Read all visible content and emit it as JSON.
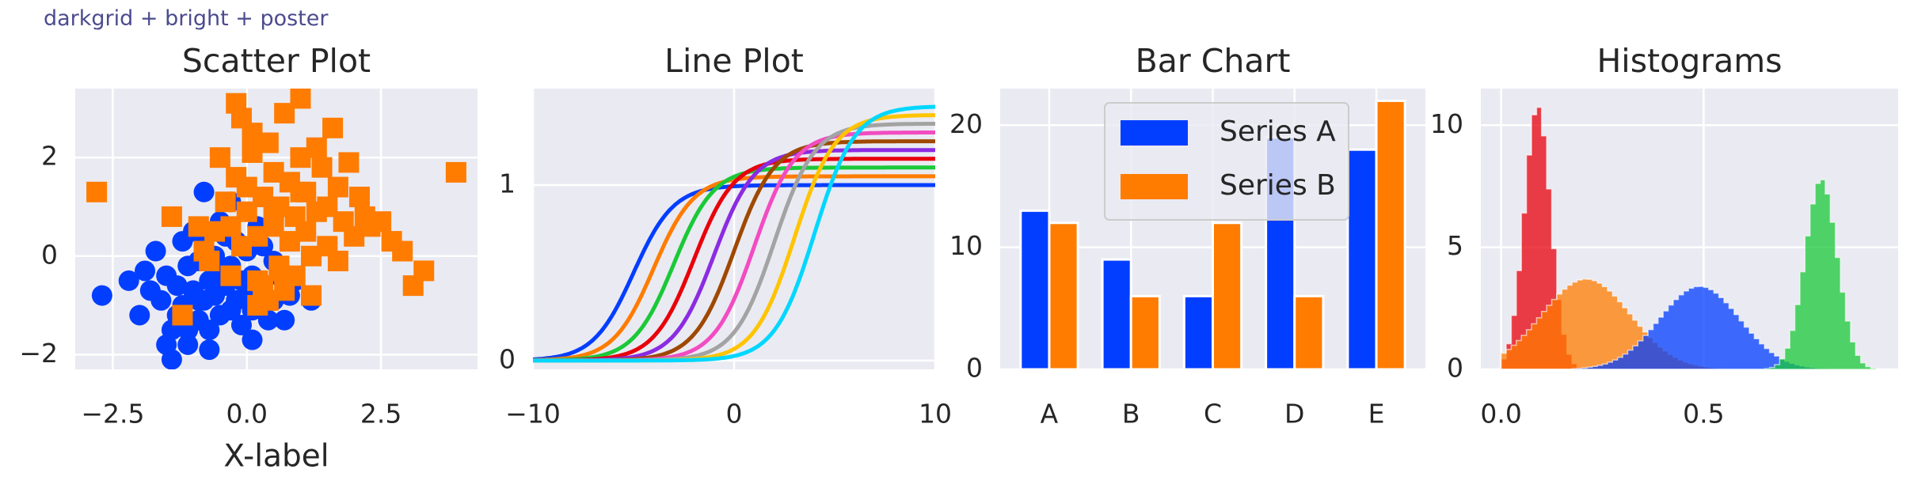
{
  "figure_title": "darkgrid + bright + poster",
  "style": {
    "axes_bg": "#eaeaf2",
    "grid": "#ffffff",
    "text": "#262626"
  },
  "chart_data": [
    {
      "type": "scatter",
      "title": "Scatter Plot",
      "xlabel": "X-label",
      "ylabel": "",
      "xlim": [
        -3.2,
        4.3
      ],
      "ylim": [
        -2.3,
        3.4
      ],
      "xticks": [
        -2.5,
        0.0,
        2.5
      ],
      "xtick_labels": [
        "−2.5",
        "0.0",
        "2.5"
      ],
      "yticks": [
        -2,
        0,
        2
      ],
      "ytick_labels": [
        "−2",
        "0",
        "2"
      ],
      "grid": true,
      "series": [
        {
          "color": "#023eff",
          "marker": "circle",
          "x": [
            -2.7,
            -2.2,
            -2.0,
            -1.9,
            -1.8,
            -1.7,
            -1.6,
            -1.5,
            -1.4,
            -1.4,
            -1.3,
            -1.2,
            -1.2,
            -1.1,
            -1.1,
            -1.0,
            -1.0,
            -0.9,
            -0.9,
            -0.8,
            -0.8,
            -0.8,
            -0.7,
            -0.7,
            -0.6,
            -0.6,
            -0.5,
            -0.5,
            -0.4,
            -0.4,
            -0.3,
            -0.3,
            -0.2,
            -0.2,
            -0.1,
            -0.1,
            0.0,
            0.0,
            0.1,
            0.1,
            0.2,
            0.2,
            0.3,
            0.3,
            0.4,
            0.5,
            0.6,
            0.7,
            0.8,
            0.9,
            1.2,
            -1.5,
            -1.1,
            -0.7,
            -0.5,
            -0.3,
            0.1,
            -0.9,
            -1.3,
            0.5
          ],
          "y": [
            -0.8,
            -0.5,
            -1.2,
            -0.3,
            -0.7,
            0.1,
            -0.9,
            -0.4,
            -1.5,
            -2.1,
            -0.6,
            -1.0,
            0.3,
            -1.8,
            -0.2,
            -0.7,
            0.5,
            -1.3,
            -0.1,
            -0.9,
            0.2,
            1.3,
            -0.5,
            -1.5,
            -0.8,
            0.0,
            -1.2,
            -0.3,
            -0.6,
            0.4,
            -1.1,
            -0.2,
            -0.9,
            0.3,
            -1.4,
            -0.5,
            -0.8,
            0.1,
            -1.7,
            -0.4,
            -1.0,
            0.6,
            -0.7,
            0.2,
            -1.3,
            -0.9,
            -0.4,
            -1.3,
            -0.8,
            -0.5,
            -0.9,
            -1.8,
            -1.5,
            -1.9,
            0.7,
            1.1,
            -1.1,
            -0.9,
            -1.2,
            -0.1
          ]
        },
        {
          "color": "#ff7c00",
          "marker": "square",
          "x": [
            -2.8,
            -1.4,
            -1.2,
            -0.8,
            -0.5,
            -0.3,
            -0.2,
            -0.1,
            0.0,
            0.0,
            0.1,
            0.2,
            0.2,
            0.3,
            0.4,
            0.4,
            0.5,
            0.5,
            0.6,
            0.6,
            0.7,
            0.8,
            0.8,
            0.9,
            0.9,
            1.0,
            1.0,
            1.1,
            1.1,
            1.2,
            1.3,
            1.3,
            1.4,
            1.5,
            1.5,
            1.6,
            1.7,
            1.7,
            1.8,
            1.9,
            2.0,
            2.1,
            2.2,
            2.3,
            2.5,
            2.7,
            2.9,
            3.1,
            3.3,
            3.9,
            -0.3,
            -0.1,
            0.2,
            0.5,
            0.7,
            1.0,
            -0.6,
            -0.4,
            -0.2,
            0.6,
            1.2,
            -0.7,
            -0.9,
            0.3,
            0.1
          ],
          "y": [
            1.3,
            0.8,
            -1.2,
            0.1,
            2.0,
            0.6,
            3.1,
            2.8,
            0.9,
            1.4,
            2.1,
            -0.5,
            0.4,
            1.2,
            2.3,
            -0.9,
            0.6,
            1.7,
            -0.2,
            1.0,
            2.9,
            0.3,
            1.5,
            -0.4,
            0.8,
            2.0,
            3.2,
            0.5,
            1.3,
            -0.8,
            2.2,
            0.9,
            1.8,
            0.2,
            1.0,
            2.6,
            -0.1,
            1.4,
            0.7,
            1.9,
            0.4,
            1.2,
            0.8,
            0.6,
            0.7,
            0.3,
            0.1,
            -0.6,
            -0.3,
            1.7,
            -0.4,
            0.2,
            -1.0,
            0.9,
            -0.7,
            1.3,
            0.5,
            1.1,
            1.6,
            -0.3,
            0.0,
            -0.1,
            0.6,
            -0.6,
            2.5
          ]
        }
      ]
    },
    {
      "type": "line",
      "title": "Line Plot",
      "xlim": [
        -10,
        10
      ],
      "ylim": [
        -0.05,
        1.55
      ],
      "xticks": [
        -10,
        0,
        10
      ],
      "xtick_labels": [
        "−10",
        "0",
        "10"
      ],
      "yticks": [
        0,
        1
      ],
      "ytick_labels": [
        "0",
        "1"
      ],
      "grid": true,
      "curve": "sigmoid: y = (1 + i/20) / (1 + exp(x0 - x))",
      "series": [
        {
          "color": "#023eff",
          "amplitude": 1.0,
          "x0": -5
        },
        {
          "color": "#ff7c00",
          "amplitude": 1.05,
          "x0": -4
        },
        {
          "color": "#1ac938",
          "amplitude": 1.1,
          "x0": -3
        },
        {
          "color": "#e8000b",
          "amplitude": 1.15,
          "x0": -2
        },
        {
          "color": "#8b2be2",
          "amplitude": 1.2,
          "x0": -1
        },
        {
          "color": "#9f4800",
          "amplitude": 1.25,
          "x0": 0
        },
        {
          "color": "#f14cc1",
          "amplitude": 1.3,
          "x0": 1
        },
        {
          "color": "#a3a3a3",
          "amplitude": 1.35,
          "x0": 2
        },
        {
          "color": "#ffc400",
          "amplitude": 1.4,
          "x0": 3
        },
        {
          "color": "#00d7ff",
          "amplitude": 1.45,
          "x0": 4
        }
      ]
    },
    {
      "type": "bar",
      "title": "Bar Chart",
      "categories": [
        "A",
        "B",
        "C",
        "D",
        "E"
      ],
      "ylim": [
        0,
        23
      ],
      "yticks": [
        0,
        10,
        20
      ],
      "ytick_labels": [
        "0",
        "10",
        "20"
      ],
      "grid": true,
      "legend": "top-center",
      "series": [
        {
          "name": "Series A",
          "color": "#023eff",
          "values": [
            13,
            9,
            6,
            19,
            18
          ]
        },
        {
          "name": "Series B",
          "color": "#ff7c00",
          "values": [
            12,
            6,
            12,
            6,
            22
          ]
        }
      ]
    },
    {
      "type": "bar",
      "subtype": "histogram",
      "title": "Histograms",
      "xlim": [
        -0.05,
        0.98
      ],
      "ylim": [
        0,
        11.5
      ],
      "xticks": [
        0.0,
        0.5
      ],
      "xtick_labels": [
        "0.0",
        "0.5"
      ],
      "yticks": [
        0,
        5,
        10
      ],
      "ytick_labels": [
        "0",
        "5",
        "10"
      ],
      "grid": true,
      "bin_width": 0.0125,
      "series": [
        {
          "color": "#e8000b",
          "distribution": "peak",
          "center": 0.09,
          "spread": 0.033,
          "peak": 10.8
        },
        {
          "color": "#ff7c00",
          "distribution": "peak",
          "center": 0.21,
          "spread": 0.11,
          "peak": 3.7
        },
        {
          "color": "#023eff",
          "distribution": "peak",
          "center": 0.49,
          "spread": 0.1,
          "peak": 3.4
        },
        {
          "color": "#1ac938",
          "distribution": "peak",
          "center": 0.79,
          "spread": 0.04,
          "peak": 7.8
        }
      ]
    }
  ]
}
